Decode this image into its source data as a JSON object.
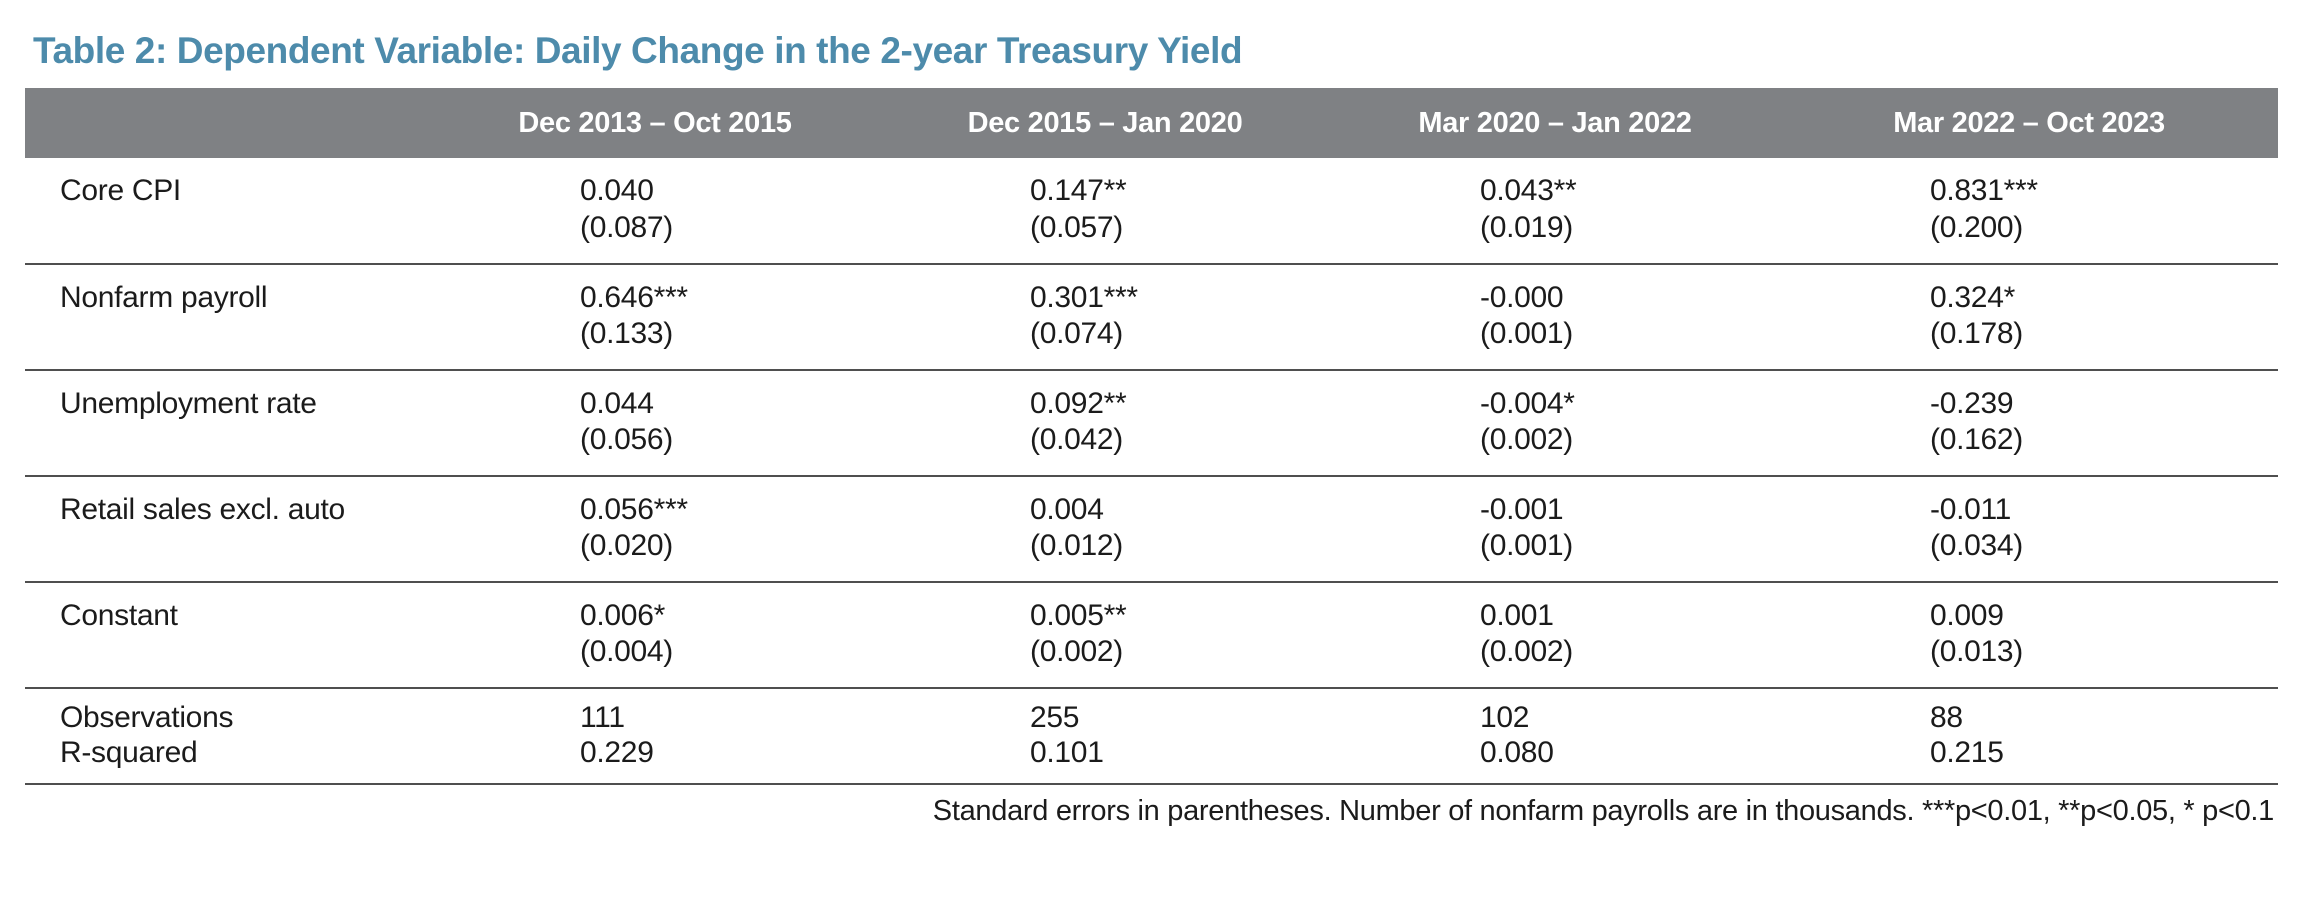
{
  "title": "Table 2: Dependent Variable: Daily Change in the 2-year Treasury Yield",
  "colors": {
    "title_accent": "#4d8bab",
    "header_bg": "#7f8184",
    "header_text": "#ffffff",
    "rule": "#4f4f4f"
  },
  "table": {
    "columns": [
      "",
      "Dec 2013 – Oct 2015",
      "Dec 2015 – Jan 2020",
      "Mar 2020 – Jan 2022",
      "Mar 2022 – Oct 2023"
    ],
    "rows": [
      {
        "label": "Core CPI",
        "estimates": [
          "0.040",
          "0.147**",
          "0.043**",
          "0.831***"
        ],
        "std_errors": [
          "(0.087)",
          "(0.057)",
          "(0.019)",
          "(0.200)"
        ]
      },
      {
        "label": "Nonfarm payroll",
        "estimates": [
          "0.646***",
          "0.301***",
          "-0.000",
          "0.324*"
        ],
        "std_errors": [
          "(0.133)",
          "(0.074)",
          "(0.001)",
          "(0.178)"
        ]
      },
      {
        "label": "Unemployment rate",
        "estimates": [
          "0.044",
          "0.092**",
          "-0.004*",
          "-0.239"
        ],
        "std_errors": [
          "(0.056)",
          "(0.042)",
          "(0.002)",
          "(0.162)"
        ]
      },
      {
        "label": "Retail sales excl. auto",
        "estimates": [
          "0.056***",
          "0.004",
          "-0.001",
          "-0.011"
        ],
        "std_errors": [
          "(0.020)",
          "(0.012)",
          "(0.001)",
          "(0.034)"
        ]
      },
      {
        "label": "Constant",
        "estimates": [
          "0.006*",
          "0.005**",
          "0.001",
          "0.009"
        ],
        "std_errors": [
          "(0.004)",
          "(0.002)",
          "(0.002)",
          "(0.013)"
        ]
      }
    ],
    "stats": [
      {
        "label": "Observations",
        "values": [
          "111",
          "255",
          "102",
          "88"
        ]
      },
      {
        "label": "R-squared",
        "values": [
          "0.229",
          "0.101",
          "0.080",
          "0.215"
        ]
      }
    ]
  },
  "footnote": "Standard errors in parentheses. Number of nonfarm payrolls are in thousands. ***p<0.01, **p<0.05, * p<0.1"
}
